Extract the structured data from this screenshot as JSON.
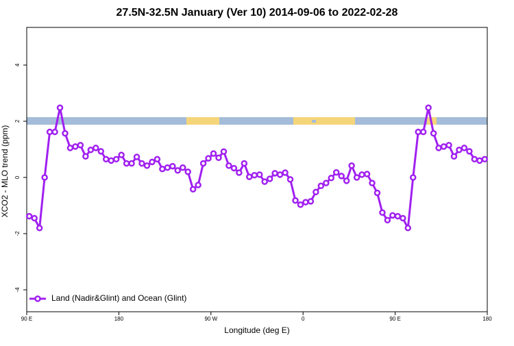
{
  "chart_data": {
    "type": "line",
    "title": "27.5N-32.5N January (Ver 10)   2014-09-06 to 2022-02-28",
    "x_label": "Longitude (deg E)",
    "y_label": "XCO2 - MLO trend (ppm)",
    "x": [
      92.5,
      97.5,
      102.5,
      107.5,
      112.5,
      117.5,
      122.5,
      127.5,
      132.5,
      137.5,
      142.5,
      147.5,
      152.5,
      157.5,
      162.5,
      167.5,
      172.5,
      177.5,
      182.5,
      187.5,
      192.5,
      197.5,
      202.5,
      207.5,
      212.5,
      217.5,
      222.5,
      227.5,
      232.5,
      237.5,
      242.5,
      247.5,
      252.5,
      257.5,
      262.5,
      267.5,
      272.5,
      277.5,
      282.5,
      287.5,
      292.5,
      297.5,
      302.5,
      307.5,
      312.5,
      317.5,
      322.5,
      327.5,
      332.5,
      337.5,
      342.5,
      347.5,
      352.5,
      357.5,
      362.5,
      367.5,
      372.5,
      377.5,
      382.5,
      387.5,
      392.5,
      397.5,
      402.5,
      407.5,
      412.5,
      417.5,
      422.5,
      427.5,
      432.5,
      437.5,
      442.5,
      447.5,
      452.5,
      457.5,
      462.5,
      467.5,
      472.5,
      477.5,
      482.5,
      487.5,
      492.5,
      497.5,
      502.5,
      507.5,
      512.5,
      517.5,
      522.5,
      527.5,
      532.5,
      537.5
    ],
    "series": [
      {
        "name": "Land (Nadir&Glint) and Ocean (Glint)",
        "color": "#a020f0",
        "values": [
          -1.38,
          -1.45,
          -1.8,
          0.0,
          1.62,
          1.62,
          2.48,
          1.57,
          1.05,
          1.1,
          1.15,
          0.75,
          0.98,
          1.05,
          0.93,
          0.65,
          0.6,
          0.65,
          0.8,
          0.5,
          0.5,
          0.73,
          0.5,
          0.42,
          0.55,
          0.65,
          0.3,
          0.35,
          0.4,
          0.25,
          0.35,
          0.2,
          -0.42,
          -0.27,
          0.5,
          0.68,
          0.85,
          0.7,
          0.92,
          0.42,
          0.33,
          0.17,
          0.5,
          0.02,
          0.08,
          0.1,
          -0.15,
          -0.05,
          0.15,
          0.1,
          0.17,
          -0.07,
          -0.82,
          -0.97,
          -0.88,
          -0.85,
          -0.52,
          -0.3,
          -0.2,
          -0.02,
          0.18,
          0.05,
          -0.12,
          0.42,
          0.0,
          0.1,
          0.12,
          -0.2,
          -0.55,
          -1.25,
          -1.52,
          -1.35,
          -1.38,
          -1.45,
          -1.8,
          0.0,
          1.62,
          1.62,
          2.48,
          1.57,
          1.05,
          1.1,
          1.15,
          0.75,
          0.98,
          1.05,
          0.93,
          0.65,
          0.6,
          0.65
        ]
      }
    ],
    "xlim": [
      90,
      540
    ],
    "xticks": [
      {
        "value": 90,
        "label": "90 E"
      },
      {
        "value": 180,
        "label": "180"
      },
      {
        "value": 270,
        "label": "90 W"
      },
      {
        "value": 360,
        "label": "0"
      },
      {
        "value": 450,
        "label": "90 E"
      },
      {
        "value": 540,
        "label": "180"
      }
    ],
    "ylim": [
      -4.78,
      5.34
    ],
    "yticks": [
      -4,
      -2,
      0,
      2,
      4
    ],
    "legend": "bottomleft"
  }
}
